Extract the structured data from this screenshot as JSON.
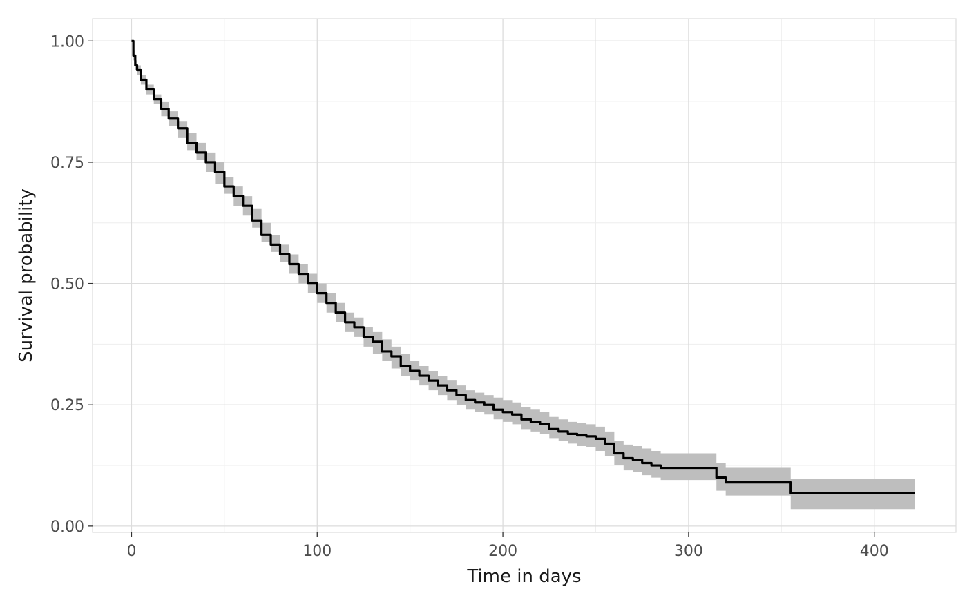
{
  "chart_data": {
    "type": "line",
    "title": "",
    "xlabel": "Time in days",
    "ylabel": "Survival probability",
    "xlim": [
      -21,
      444
    ],
    "ylim": [
      -0.013,
      1.046
    ],
    "x_ticks": [
      0,
      100,
      200,
      300,
      400
    ],
    "x_tick_labels": [
      "0",
      "100",
      "200",
      "300",
      "400"
    ],
    "y_ticks": [
      0,
      0.25,
      0.5,
      0.75,
      1
    ],
    "y_tick_labels": [
      "0.00",
      "0.25",
      "0.50",
      "0.75",
      "1.00"
    ],
    "grid": true,
    "legend": "none",
    "colors": {
      "line": "#000000",
      "band": "#bebebe",
      "grid_major": "#dcdcdc",
      "grid_minor": "#eeeeee",
      "border": "#dcdcdc"
    },
    "series": [
      {
        "style": "step",
        "x": [
          0,
          1,
          2,
          3,
          5,
          8,
          12,
          16,
          20,
          25,
          30,
          35,
          40,
          45,
          50,
          55,
          60,
          65,
          70,
          75,
          80,
          85,
          90,
          95,
          100,
          105,
          110,
          115,
          120,
          125,
          130,
          135,
          140,
          145,
          150,
          155,
          160,
          165,
          170,
          175,
          180,
          185,
          190,
          195,
          200,
          205,
          210,
          215,
          220,
          225,
          230,
          235,
          240,
          245,
          250,
          255,
          260,
          265,
          270,
          275,
          280,
          285,
          290,
          315,
          320,
          355,
          422
        ],
        "y": [
          1.0,
          0.97,
          0.95,
          0.94,
          0.92,
          0.9,
          0.88,
          0.86,
          0.84,
          0.82,
          0.79,
          0.77,
          0.75,
          0.73,
          0.7,
          0.68,
          0.66,
          0.63,
          0.6,
          0.58,
          0.56,
          0.54,
          0.52,
          0.5,
          0.48,
          0.46,
          0.44,
          0.42,
          0.41,
          0.39,
          0.38,
          0.36,
          0.35,
          0.33,
          0.32,
          0.31,
          0.3,
          0.29,
          0.28,
          0.27,
          0.26,
          0.255,
          0.25,
          0.24,
          0.235,
          0.23,
          0.22,
          0.215,
          0.21,
          0.2,
          0.195,
          0.19,
          0.187,
          0.185,
          0.18,
          0.17,
          0.15,
          0.14,
          0.137,
          0.13,
          0.125,
          0.12,
          0.12,
          0.1,
          0.09,
          0.068,
          0.068
        ],
        "lower": [
          1.0,
          0.96,
          0.94,
          0.93,
          0.91,
          0.89,
          0.87,
          0.845,
          0.825,
          0.8,
          0.775,
          0.755,
          0.73,
          0.705,
          0.685,
          0.66,
          0.64,
          0.615,
          0.585,
          0.565,
          0.545,
          0.52,
          0.5,
          0.48,
          0.46,
          0.44,
          0.42,
          0.4,
          0.39,
          0.37,
          0.355,
          0.34,
          0.325,
          0.31,
          0.3,
          0.29,
          0.28,
          0.27,
          0.26,
          0.25,
          0.24,
          0.235,
          0.23,
          0.22,
          0.215,
          0.21,
          0.2,
          0.195,
          0.19,
          0.18,
          0.175,
          0.17,
          0.165,
          0.163,
          0.155,
          0.145,
          0.125,
          0.115,
          0.112,
          0.105,
          0.1,
          0.095,
          0.095,
          0.073,
          0.063,
          0.035,
          0.035
        ],
        "upper": [
          1.0,
          0.98,
          0.96,
          0.95,
          0.93,
          0.91,
          0.89,
          0.875,
          0.855,
          0.835,
          0.81,
          0.79,
          0.77,
          0.75,
          0.72,
          0.7,
          0.68,
          0.655,
          0.625,
          0.6,
          0.58,
          0.56,
          0.54,
          0.52,
          0.5,
          0.48,
          0.46,
          0.44,
          0.43,
          0.41,
          0.4,
          0.385,
          0.37,
          0.355,
          0.34,
          0.33,
          0.32,
          0.31,
          0.3,
          0.29,
          0.28,
          0.275,
          0.27,
          0.265,
          0.26,
          0.255,
          0.245,
          0.24,
          0.235,
          0.225,
          0.22,
          0.215,
          0.212,
          0.21,
          0.205,
          0.195,
          0.175,
          0.168,
          0.165,
          0.16,
          0.155,
          0.15,
          0.15,
          0.13,
          0.12,
          0.098,
          0.098
        ]
      }
    ]
  }
}
